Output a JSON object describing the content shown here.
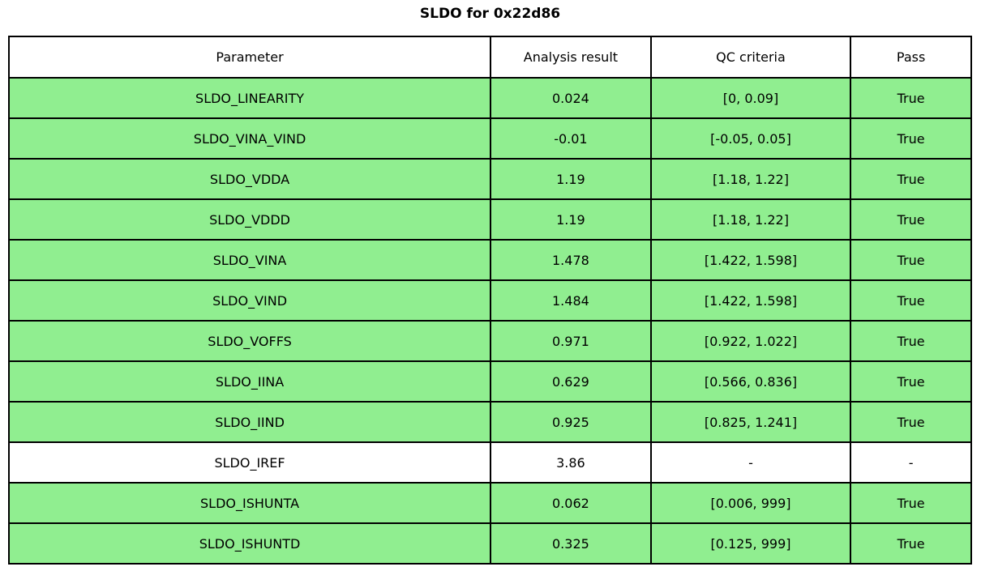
{
  "chart_data": {
    "type": "table",
    "title": "SLDO for 0x22d86",
    "columns": [
      "Parameter",
      "Analysis result",
      "QC criteria",
      "Pass"
    ],
    "rows": [
      {
        "parameter": "SLDO_LINEARITY",
        "analysis_result": "0.024",
        "qc_criteria": "[0, 0.09]",
        "pass": "True",
        "passed": true
      },
      {
        "parameter": "SLDO_VINA_VIND",
        "analysis_result": "-0.01",
        "qc_criteria": "[-0.05, 0.05]",
        "pass": "True",
        "passed": true
      },
      {
        "parameter": "SLDO_VDDA",
        "analysis_result": "1.19",
        "qc_criteria": "[1.18, 1.22]",
        "pass": "True",
        "passed": true
      },
      {
        "parameter": "SLDO_VDDD",
        "analysis_result": "1.19",
        "qc_criteria": "[1.18, 1.22]",
        "pass": "True",
        "passed": true
      },
      {
        "parameter": "SLDO_VINA",
        "analysis_result": "1.478",
        "qc_criteria": "[1.422, 1.598]",
        "pass": "True",
        "passed": true
      },
      {
        "parameter": "SLDO_VIND",
        "analysis_result": "1.484",
        "qc_criteria": "[1.422, 1.598]",
        "pass": "True",
        "passed": true
      },
      {
        "parameter": "SLDO_VOFFS",
        "analysis_result": "0.971",
        "qc_criteria": "[0.922, 1.022]",
        "pass": "True",
        "passed": true
      },
      {
        "parameter": "SLDO_IINA",
        "analysis_result": "0.629",
        "qc_criteria": "[0.566, 0.836]",
        "pass": "True",
        "passed": true
      },
      {
        "parameter": "SLDO_IIND",
        "analysis_result": "0.925",
        "qc_criteria": "[0.825, 1.241]",
        "pass": "True",
        "passed": true
      },
      {
        "parameter": "SLDO_IREF",
        "analysis_result": "3.86",
        "qc_criteria": "-",
        "pass": "-",
        "passed": null
      },
      {
        "parameter": "SLDO_ISHUNTA",
        "analysis_result": "0.062",
        "qc_criteria": "[0.006, 999]",
        "pass": "True",
        "passed": true
      },
      {
        "parameter": "SLDO_ISHUNTD",
        "analysis_result": "0.325",
        "qc_criteria": "[0.125, 999]",
        "pass": "True",
        "passed": true
      }
    ],
    "layout": {
      "legend": false,
      "grid": true,
      "title_position": "top-center"
    },
    "colors": {
      "pass_row_bg": "#90EE90",
      "neutral_row_bg": "#FFFFFF",
      "header_bg": "#FFFFFF",
      "border": "#000000",
      "text": "#000000"
    }
  }
}
